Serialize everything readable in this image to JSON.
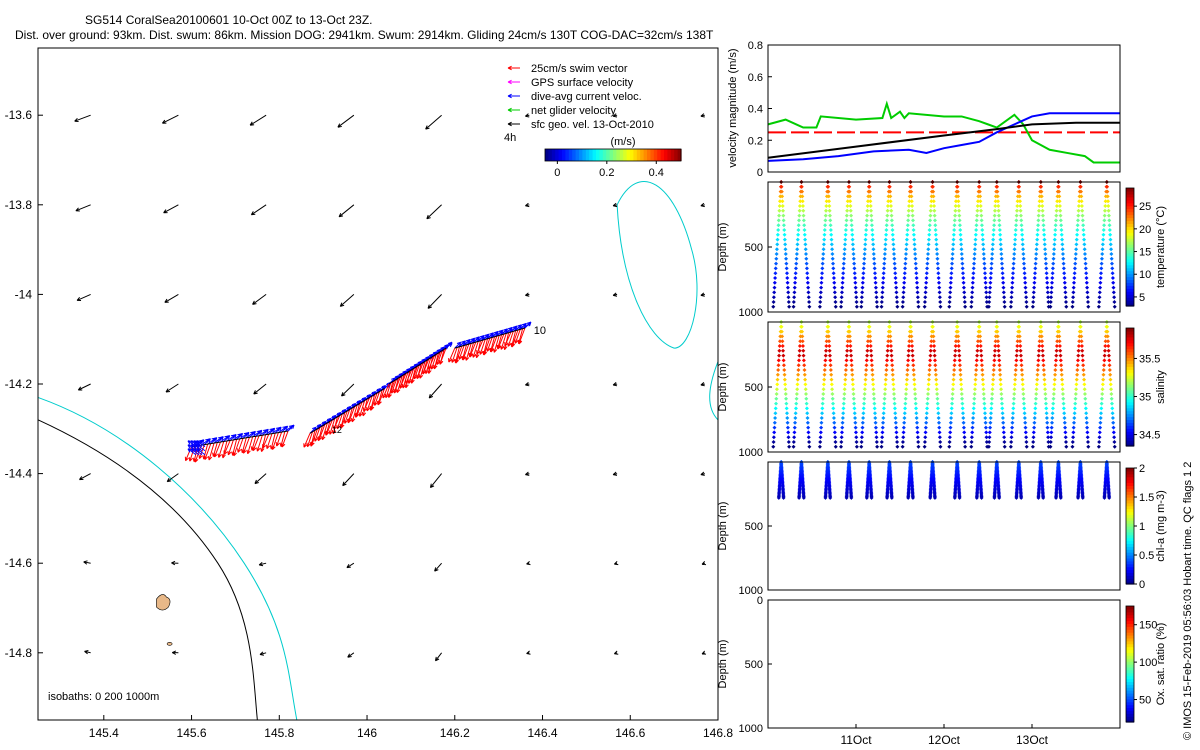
{
  "header": {
    "line1": "SG514 CoralSea20100601 10-Oct 00Z to 13-Oct 23Z.",
    "line2": "Dist. over ground: 93km. Dist. swum: 86km. Mission DOG: 2941km. Swum: 2914km. Gliding 24cm/s 130T COG-DAC=32cm/s 138T"
  },
  "colors": {
    "swim": "#ff0000",
    "gps": "#ff00ff",
    "dac": "#0000ff",
    "net": "#00cc00",
    "geo": "#000000",
    "isobath_0": "#000000",
    "isobath_200": "#00cccc",
    "land": "#e8b888"
  },
  "credit": "© IMOS 15-Feb-2019 05:56:03 Hobart time. QC flags 1  2",
  "chart_data": [
    {
      "type": "map",
      "xlim": [
        145.25,
        146.8
      ],
      "ylim": [
        -14.95,
        -13.45
      ],
      "x_ticks": [
        "145.4",
        "145.6",
        "145.8",
        "146",
        "146.2",
        "146.4",
        "146.6",
        "146.8"
      ],
      "x_tick_values": [
        145.4,
        145.6,
        145.8,
        146.0,
        146.2,
        146.4,
        146.6,
        146.8
      ],
      "y_ticks": [
        "-13.6",
        "-13.8",
        "-14",
        "-14.2",
        "-14.4",
        "-14.6",
        "-14.8"
      ],
      "y_tick_values": [
        -13.6,
        -13.8,
        -14.0,
        -14.2,
        -14.4,
        -14.6,
        -14.8
      ],
      "legend": [
        {
          "label": "25cm/s swim vector",
          "color": "#ff0000"
        },
        {
          "label": "GPS surface velocity",
          "color": "#ff00ff"
        },
        {
          "label": "dive-avg current veloc.",
          "color": "#0000ff"
        },
        {
          "label": "net glider velocity",
          "color": "#00cc00"
        },
        {
          "label": "sfc geo. vel. 13-Oct-2010",
          "color": "#000000"
        }
      ],
      "time_marker": "4h",
      "colorbar_label": "(m/s)",
      "colorbar_ticks": [
        "0",
        "0.2",
        "0.4"
      ],
      "colorbar_tick_values": [
        0,
        0.2,
        0.4
      ],
      "colorbar_range": [
        -0.05,
        0.5
      ],
      "isobath_label": "isobaths: 0   200  1000m",
      "track_labels": [
        "10",
        "12"
      ],
      "track_segments": [
        {
          "lon": [
            145.6,
            145.82
          ],
          "lat": [
            -14.34,
            -14.305
          ]
        },
        {
          "lon": [
            145.87,
            146.04
          ],
          "lat": [
            -14.31,
            -14.21
          ]
        },
        {
          "lon": [
            146.05,
            146.18
          ],
          "lat": [
            -14.2,
            -14.12
          ]
        },
        {
          "lon": [
            146.2,
            146.36
          ],
          "lat": [
            -14.12,
            -14.075
          ]
        }
      ],
      "geo_field_lon": [
        145.37,
        145.57,
        145.77,
        145.97,
        146.17,
        146.37,
        146.57,
        146.77
      ],
      "geo_field_lat": [
        -13.6,
        -13.8,
        -14.0,
        -14.2,
        -14.4,
        -14.6,
        -14.8
      ]
    },
    {
      "type": "line",
      "ylabel": "velocity magnitude (m/s)",
      "ylim": [
        0,
        0.8
      ],
      "y_ticks": [
        "0",
        "0.2",
        "0.4",
        "0.6",
        "0.8"
      ],
      "y_tick_values": [
        0,
        0.2,
        0.4,
        0.6,
        0.8
      ],
      "xlim": [
        10.0,
        14.0
      ],
      "series": [
        {
          "name": "swim speed",
          "color": "#ff0000",
          "dashed": true,
          "x": [
            10.0,
            14.0
          ],
          "y": [
            0.25,
            0.25
          ]
        },
        {
          "name": "net glider velocity",
          "color": "#00cc00",
          "x": [
            10.0,
            10.2,
            10.4,
            10.55,
            10.6,
            11.0,
            11.3,
            11.35,
            11.4,
            11.5,
            11.55,
            11.6,
            12.0,
            12.2,
            12.4,
            12.5,
            12.6,
            12.7,
            12.8,
            12.9,
            13.0,
            13.1,
            13.2,
            13.4,
            13.6,
            13.7,
            14.0
          ],
          "y": [
            0.3,
            0.33,
            0.28,
            0.28,
            0.35,
            0.33,
            0.34,
            0.43,
            0.34,
            0.38,
            0.34,
            0.37,
            0.35,
            0.35,
            0.32,
            0.3,
            0.28,
            0.32,
            0.36,
            0.3,
            0.2,
            0.17,
            0.14,
            0.12,
            0.1,
            0.06,
            0.06
          ]
        },
        {
          "name": "dive-avg current",
          "color": "#0000ff",
          "x": [
            10.0,
            10.4,
            10.8,
            11.2,
            11.6,
            11.8,
            12.0,
            12.2,
            12.4,
            12.6,
            12.8,
            13.0,
            13.2,
            13.5,
            14.0
          ],
          "y": [
            0.07,
            0.08,
            0.1,
            0.13,
            0.14,
            0.12,
            0.15,
            0.17,
            0.19,
            0.25,
            0.3,
            0.35,
            0.37,
            0.37,
            0.37
          ]
        },
        {
          "name": "sfc geo. vel.",
          "color": "#000000",
          "x": [
            10.0,
            11.0,
            12.0,
            12.6,
            13.0,
            13.5,
            14.0
          ],
          "y": [
            0.09,
            0.16,
            0.23,
            0.27,
            0.3,
            0.31,
            0.31
          ]
        }
      ]
    },
    {
      "type": "scatter",
      "variable": "temperature",
      "colorbar_label": "temperature (°C)",
      "ylabel": "Depth (m)",
      "ylim": [
        1000,
        0
      ],
      "y_ticks": [
        "500",
        "1000"
      ],
      "y_tick_values": [
        500,
        1000
      ],
      "xlim": [
        10.0,
        14.0
      ],
      "colorbar_ticks": [
        "5",
        "10",
        "15",
        "20",
        "25"
      ],
      "colorbar_tick_values": [
        5,
        10,
        15,
        20,
        25
      ],
      "colorbar_range": [
        3,
        29
      ],
      "profile_times": [
        10.15,
        10.38,
        10.68,
        10.92,
        11.15,
        11.38,
        11.62,
        11.87,
        12.15,
        12.4,
        12.6,
        12.85,
        13.1,
        13.3,
        13.55,
        13.85
      ],
      "max_depth": 960,
      "surface_value": 28,
      "deep_value": 4
    },
    {
      "type": "scatter",
      "variable": "salinity",
      "colorbar_label": "salinity",
      "ylabel": "Depth (m)",
      "ylim": [
        1000,
        0
      ],
      "y_ticks": [
        "500",
        "1000"
      ],
      "y_tick_values": [
        500,
        1000
      ],
      "xlim": [
        10.0,
        14.0
      ],
      "colorbar_ticks": [
        "34.5",
        "35",
        "35.5"
      ],
      "colorbar_tick_values": [
        34.5,
        35.0,
        35.5
      ],
      "colorbar_range": [
        34.35,
        35.9
      ],
      "profile_times": [
        10.15,
        10.38,
        10.68,
        10.92,
        11.15,
        11.38,
        11.62,
        11.87,
        12.15,
        12.4,
        12.6,
        12.85,
        13.1,
        13.3,
        13.55,
        13.85
      ],
      "max_depth": 960
    },
    {
      "type": "scatter",
      "variable": "chl-a",
      "colorbar_label": "chl-a (mg m-3)",
      "ylabel": "Depth (m)",
      "ylim": [
        1000,
        0
      ],
      "y_ticks": [
        "500",
        "1000"
      ],
      "y_tick_values": [
        500,
        1000
      ],
      "xlim": [
        10.0,
        14.0
      ],
      "colorbar_ticks": [
        "0",
        "0.5",
        "1",
        "1.5",
        "2"
      ],
      "colorbar_tick_values": [
        0,
        0.5,
        1.0,
        1.5,
        2.0
      ],
      "colorbar_range": [
        0,
        2
      ],
      "profile_times": [
        10.15,
        10.38,
        10.68,
        10.92,
        11.15,
        11.38,
        11.62,
        11.87,
        12.15,
        12.4,
        12.6,
        12.85,
        13.1,
        13.3,
        13.55,
        13.85
      ],
      "max_depth": 280
    },
    {
      "type": "scatter",
      "variable": "oxygen",
      "colorbar_label": "Ox. sat. ratio (%)",
      "ylabel": "Depth (m)",
      "ylim": [
        1000,
        0
      ],
      "y_ticks": [
        "0",
        "500",
        "1000"
      ],
      "y_tick_values": [
        0,
        500,
        1000
      ],
      "xlim": [
        10.0,
        14.0
      ],
      "x_ticks": [
        "11Oct",
        "12Oct",
        "13Oct"
      ],
      "x_tick_values": [
        11.0,
        12.0,
        13.0
      ],
      "colorbar_ticks": [
        "50",
        "100",
        "150"
      ],
      "colorbar_tick_values": [
        50,
        100,
        150
      ],
      "colorbar_range": [
        20,
        175
      ]
    }
  ]
}
